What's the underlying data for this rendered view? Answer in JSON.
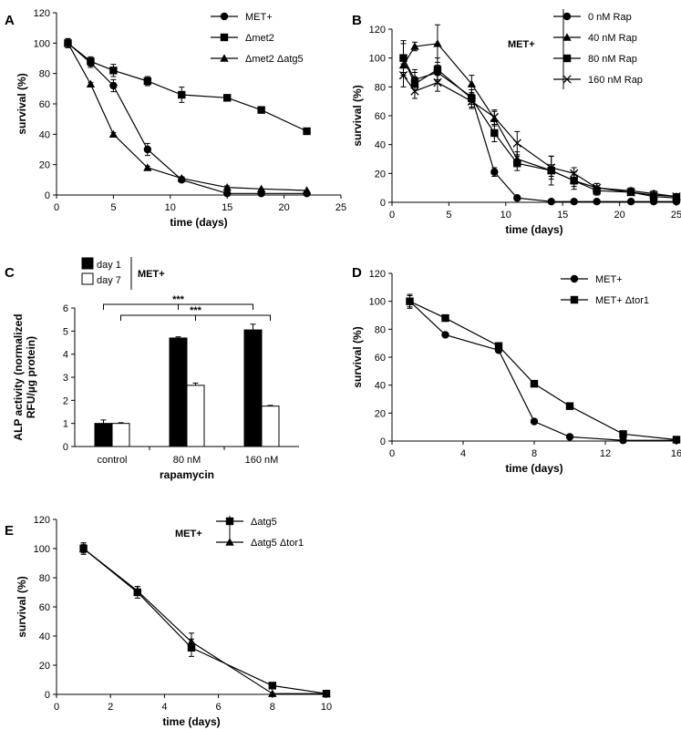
{
  "chart_data": [
    {
      "panel": "A",
      "type": "line",
      "xlabel": "time (days)",
      "ylabel": "survival (%)",
      "xlim": [
        0,
        25
      ],
      "ylim": [
        0,
        120
      ],
      "xticks": [
        "0",
        "5",
        "10",
        "15",
        "20",
        "25"
      ],
      "yticks": [
        "0",
        "20",
        "40",
        "60",
        "80",
        "100",
        "120"
      ],
      "legend_placement": "top-right",
      "series": [
        {
          "name": "MET+",
          "marker": "circle",
          "x": [
            1,
            3,
            5,
            8,
            11,
            15,
            18,
            22
          ],
          "y": [
            100,
            87,
            72,
            30,
            10,
            1,
            1,
            1
          ],
          "err": [
            3,
            3,
            4,
            4,
            1,
            1,
            0.5,
            0.5
          ]
        },
        {
          "name": "Δmet2",
          "marker": "square",
          "x": [
            1,
            3,
            5,
            8,
            11,
            15,
            18,
            22
          ],
          "y": [
            100,
            88,
            82,
            75,
            66,
            64,
            56,
            42
          ],
          "err": [
            3,
            3,
            4,
            3,
            5,
            1,
            1,
            1
          ]
        },
        {
          "name": "Δmet2 Δatg5",
          "marker": "triangle",
          "x": [
            1,
            3,
            5,
            8,
            11,
            15,
            18,
            22
          ],
          "y": [
            100,
            73,
            40,
            18,
            11,
            5,
            4,
            3
          ],
          "err": [
            2,
            1,
            1,
            1,
            1,
            1,
            0.5,
            0.5
          ]
        }
      ]
    },
    {
      "panel": "B",
      "type": "line",
      "xlabel": "time (days)",
      "ylabel": "survival (%)",
      "xlim": [
        0,
        25
      ],
      "ylim": [
        0,
        120
      ],
      "xticks": [
        "0",
        "5",
        "10",
        "15",
        "20",
        "25"
      ],
      "yticks": [
        "0",
        "20",
        "40",
        "60",
        "80",
        "100",
        "120"
      ],
      "legend_placement": "top-right",
      "legend_title": "MET+",
      "series": [
        {
          "name": "0 nM Rap",
          "marker": "circle",
          "x": [
            1,
            2,
            4,
            7,
            9,
            11,
            14,
            16,
            18,
            21,
            23,
            25
          ],
          "y": [
            100,
            85,
            90,
            73,
            21,
            3,
            0.5,
            0.5,
            0.5,
            0.5,
            0.5,
            0.5
          ],
          "err": [
            10,
            5,
            5,
            5,
            3,
            1,
            0.5,
            0.5,
            0.5,
            0.5,
            0.5,
            0.5
          ]
        },
        {
          "name": "40 nM Rap",
          "marker": "triangle",
          "x": [
            1,
            2,
            4,
            7,
            9,
            11,
            14,
            16,
            18,
            21,
            23,
            25
          ],
          "y": [
            95,
            108,
            110,
            82,
            58,
            30,
            22,
            15,
            10,
            8,
            6,
            4
          ],
          "err": [
            7,
            3,
            13,
            6,
            5,
            5,
            4,
            4,
            3,
            2,
            2,
            2
          ]
        },
        {
          "name": "80 nM Rap",
          "marker": "square",
          "x": [
            1,
            2,
            4,
            7,
            9,
            11,
            14,
            16,
            18,
            21,
            23,
            25
          ],
          "y": [
            100,
            82,
            92,
            72,
            48,
            27,
            22,
            15,
            8,
            7,
            4,
            3
          ],
          "err": [
            12,
            10,
            8,
            6,
            6,
            5,
            10,
            6,
            3,
            2,
            2,
            2
          ]
        },
        {
          "name": "160 nM Rap",
          "marker": "x",
          "x": [
            1,
            2,
            4,
            7,
            9,
            11,
            14,
            16,
            18,
            21,
            23,
            25
          ],
          "y": [
            88,
            77,
            83,
            70,
            59,
            41,
            24,
            20,
            10,
            7,
            5,
            4
          ],
          "err": [
            8,
            5,
            6,
            5,
            5,
            8,
            8,
            4,
            3,
            2,
            2,
            2
          ]
        }
      ]
    },
    {
      "panel": "C",
      "type": "bar",
      "xlabel": "rapamycin",
      "ylabel_line1": "ALP activity (normalized",
      "ylabel_line2": "RFU/µg protein)",
      "ylim": [
        0,
        6
      ],
      "yticks": [
        "0",
        "1",
        "2",
        "3",
        "4",
        "5",
        "6"
      ],
      "categories": [
        "control",
        "80 nM",
        "160 nM"
      ],
      "legend_placement": "top-left",
      "legend_title": "MET+",
      "series": [
        {
          "name": "day 1",
          "fill": "#000000",
          "values": [
            1.0,
            4.7,
            5.05
          ],
          "err": [
            0.15,
            0.05,
            0.25
          ]
        },
        {
          "name": "day 7",
          "fill": "#ffffff",
          "values": [
            1.0,
            2.65,
            1.75
          ],
          "err": [
            0.03,
            0.1,
            0.03
          ]
        }
      ],
      "significance": [
        {
          "label": "***",
          "from_category": 0,
          "to_category": 2,
          "bar_series": "day 1"
        },
        {
          "label": "***",
          "from_category": 0,
          "to_category": 2,
          "bar_series": "day 7"
        }
      ]
    },
    {
      "panel": "D",
      "type": "line",
      "xlabel": "time (days)",
      "ylabel": "survival (%)",
      "xlim": [
        0,
        16
      ],
      "ylim": [
        0,
        120
      ],
      "xticks": [
        "0",
        "4",
        "8",
        "12",
        "16"
      ],
      "yticks": [
        "0",
        "20",
        "40",
        "60",
        "80",
        "100",
        "120"
      ],
      "legend_placement": "top-right",
      "series": [
        {
          "name": "MET+",
          "marker": "circle",
          "x": [
            1,
            3,
            6,
            8,
            10,
            13,
            16
          ],
          "y": [
            100,
            76,
            65,
            14,
            3,
            0.5,
            0.5
          ],
          "err": [
            4,
            1,
            1,
            1,
            0.5,
            0.5,
            0.5
          ]
        },
        {
          "name": "MET+ Δtor1",
          "marker": "square",
          "x": [
            1,
            3,
            6,
            8,
            10,
            13,
            16
          ],
          "y": [
            100,
            88,
            68,
            41,
            25,
            5,
            1
          ],
          "err": [
            5,
            1,
            2,
            1,
            1,
            1,
            0.5
          ]
        }
      ]
    },
    {
      "panel": "E",
      "type": "line",
      "xlabel": "time (days)",
      "ylabel": "survival (%)",
      "xlim": [
        0,
        10
      ],
      "ylim": [
        0,
        120
      ],
      "xticks": [
        "0",
        "2",
        "4",
        "6",
        "8",
        "10"
      ],
      "yticks": [
        "0",
        "20",
        "40",
        "60",
        "80",
        "100",
        "120"
      ],
      "legend_placement": "top-right",
      "legend_title": "MET+",
      "series": [
        {
          "name": "Δatg5",
          "marker": "square",
          "x": [
            1,
            3,
            5,
            8,
            10
          ],
          "y": [
            100,
            70,
            32,
            6,
            0.5
          ],
          "err": [
            4,
            4,
            6,
            0.5,
            0.5
          ]
        },
        {
          "name": "Δatg5 Δtor1",
          "marker": "triangle",
          "x": [
            1,
            3,
            5,
            8,
            10
          ],
          "y": [
            100,
            71,
            36,
            0.5,
            0.5
          ],
          "err": [
            3,
            3,
            6,
            0.5,
            0.5
          ]
        }
      ]
    }
  ]
}
